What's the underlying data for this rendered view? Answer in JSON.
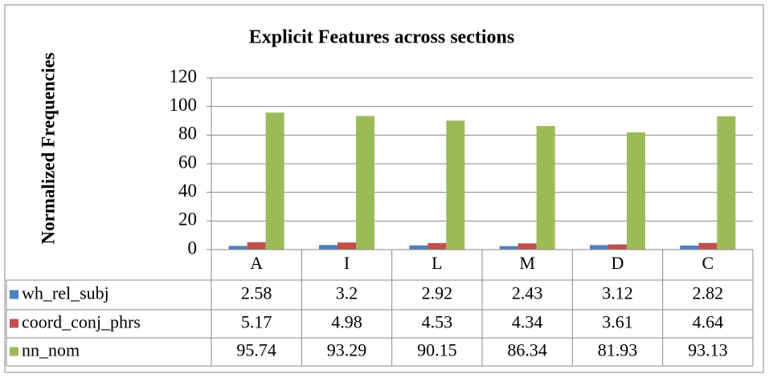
{
  "chart_data": {
    "type": "bar",
    "title": "Explicit Features across sections",
    "y_label": "Normalized Frequencies",
    "categories": [
      "A",
      "I",
      "L",
      "M",
      "D",
      "C"
    ],
    "series": [
      {
        "name": "wh_rel_subj",
        "color": "#4f81bd",
        "values": [
          2.58,
          3.2,
          2.92,
          2.43,
          3.12,
          2.82
        ]
      },
      {
        "name": "coord_conj_phrs",
        "color": "#c0504d",
        "values": [
          5.17,
          4.98,
          4.53,
          4.34,
          3.61,
          4.64
        ]
      },
      {
        "name": "nn_nom",
        "color": "#9bbb59",
        "values": [
          95.74,
          93.29,
          90.15,
          86.34,
          81.93,
          93.13
        ]
      }
    ],
    "ylim": [
      0,
      120
    ],
    "yticks": [
      0,
      20,
      40,
      60,
      80,
      100,
      120
    ],
    "grid": true
  }
}
